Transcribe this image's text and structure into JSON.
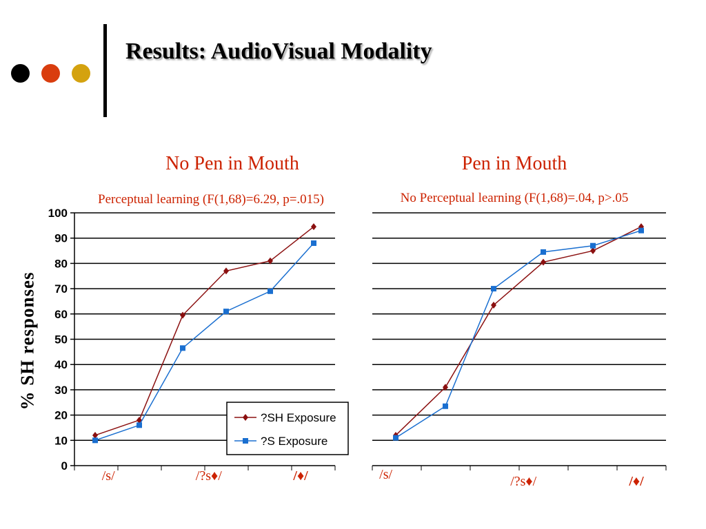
{
  "slide": {
    "title": "Results: AudioVisual Modality",
    "dot_colors": [
      "#000000",
      "#d93d0e",
      "#d4a20f"
    ],
    "ylabel": "% SH responses"
  },
  "legend": {
    "items": [
      {
        "label": "?SH Exposure",
        "color": "#8b1010",
        "marker": "diamond"
      },
      {
        "label": "?S Exposure",
        "color": "#1a6fd0",
        "marker": "square"
      }
    ]
  },
  "chart_data": [
    {
      "type": "line",
      "title": "No Pen in Mouth",
      "subtitle": "Perceptual learning (F(1,68)=6.29, p=.015)",
      "ylim": [
        0,
        100
      ],
      "yticks": [
        0,
        10,
        20,
        30,
        40,
        50,
        60,
        70,
        80,
        90,
        100
      ],
      "grid": true,
      "x": [
        1,
        2,
        3,
        4,
        5,
        6
      ],
      "xtick_labels": [
        {
          "pos": 1.3,
          "text": "/s/"
        },
        {
          "pos": 3.6,
          "text": "/?s♦/"
        },
        {
          "pos": 5.7,
          "text": "/♦/"
        }
      ],
      "series": [
        {
          "name": "?SH Exposure",
          "values": [
            12,
            18,
            59.5,
            77,
            81,
            94.5
          ],
          "color": "#8b1010",
          "marker": "diamond"
        },
        {
          "name": "?S Exposure",
          "values": [
            10,
            16,
            46.5,
            61,
            69,
            88
          ],
          "color": "#1a6fd0",
          "marker": "square"
        }
      ]
    },
    {
      "type": "line",
      "title": "Pen in Mouth",
      "subtitle": "No Perceptual learning (F(1,68)=.04, p>.05",
      "ylim": [
        0,
        100
      ],
      "grid": true,
      "x": [
        1,
        2,
        3,
        4,
        5,
        6
      ],
      "xtick_labels": [
        {
          "pos": 0.8,
          "text": "/s/"
        },
        {
          "pos": 3.6,
          "text": "/?s♦/"
        },
        {
          "pos": 5.9,
          "text": "/♦/"
        }
      ],
      "series": [
        {
          "name": "?SH Exposure",
          "values": [
            12,
            31,
            63.5,
            80.5,
            85,
            94.5
          ],
          "color": "#8b1010",
          "marker": "diamond"
        },
        {
          "name": "?S Exposure",
          "values": [
            11,
            23.5,
            70,
            84.5,
            87,
            93
          ],
          "color": "#1a6fd0",
          "marker": "square"
        }
      ]
    }
  ]
}
